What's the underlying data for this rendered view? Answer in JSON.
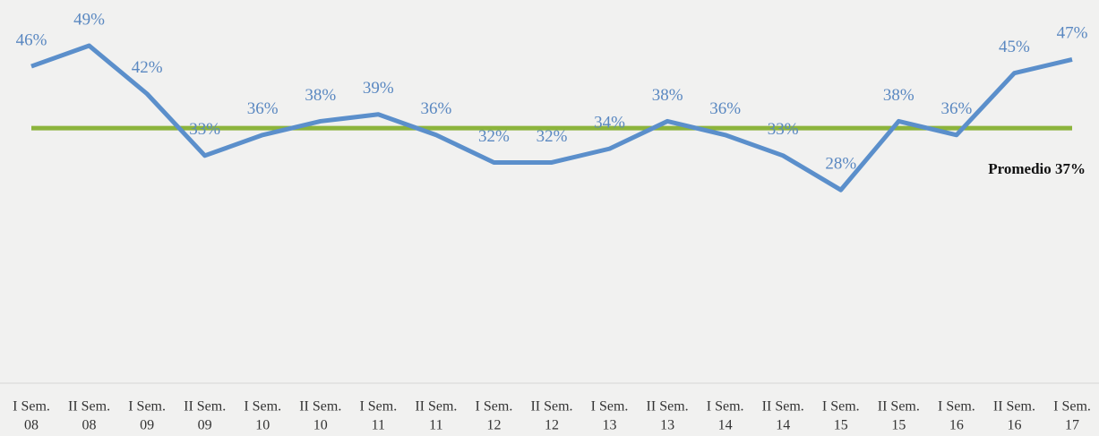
{
  "chart_data": {
    "type": "line",
    "categories": [
      [
        "I Sem.",
        "08"
      ],
      [
        "II Sem.",
        "08"
      ],
      [
        "I Sem.",
        "09"
      ],
      [
        "II Sem.",
        "09"
      ],
      [
        "I Sem.",
        "10"
      ],
      [
        "II Sem.",
        "10"
      ],
      [
        "I Sem.",
        "11"
      ],
      [
        "II Sem.",
        "11"
      ],
      [
        "I Sem.",
        "12"
      ],
      [
        "II Sem.",
        "12"
      ],
      [
        "I Sem.",
        "13"
      ],
      [
        "II Sem.",
        "13"
      ],
      [
        "I Sem.",
        "14"
      ],
      [
        "II Sem.",
        "14"
      ],
      [
        "I Sem.",
        "15"
      ],
      [
        "II Sem.",
        "15"
      ],
      [
        "I Sem.",
        "16"
      ],
      [
        "II Sem.",
        "16"
      ],
      [
        "I Sem.",
        "17"
      ]
    ],
    "values": [
      46,
      49,
      42,
      33,
      36,
      38,
      39,
      36,
      32,
      32,
      34,
      38,
      36,
      33,
      28,
      38,
      36,
      45,
      47
    ],
    "value_labels": [
      "46%",
      "49%",
      "42%",
      "33%",
      "36%",
      "38%",
      "39%",
      "36%",
      "32%",
      "32%",
      "34%",
      "38%",
      "36%",
      "33%",
      "28%",
      "38%",
      "36%",
      "45%",
      "47%"
    ],
    "color": "#5b8fcb",
    "average": {
      "value": 37,
      "label": "Promedio 37%",
      "color": "#8cb43c"
    },
    "ylim": [
      0,
      55
    ]
  }
}
